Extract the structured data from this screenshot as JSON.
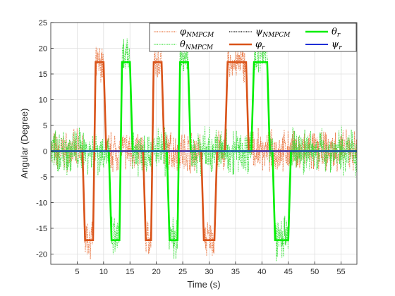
{
  "chart_data": {
    "type": "line",
    "xlabel": "Time (s)",
    "ylabel": "Angular (Degree)",
    "xlim": [
      0,
      58
    ],
    "ylim": [
      -22,
      25
    ],
    "xticks": [
      5,
      10,
      15,
      20,
      25,
      30,
      35,
      40,
      45,
      50,
      55
    ],
    "yticks": [
      -20,
      -15,
      -10,
      -5,
      0,
      5,
      10,
      15,
      20,
      25
    ],
    "grid": true,
    "legend_position": "top-right",
    "series": [
      {
        "name": "φNMPCM",
        "legend": {
          "base": "φ",
          "sub": "NMPCM"
        },
        "style": "dotted",
        "color": "#e8703a",
        "noise_amplitude": 3,
        "x": [
          0,
          6,
          6.5,
          8,
          8.5,
          10,
          10.5,
          17.5,
          18,
          19,
          19.5,
          21,
          21.5,
          28.5,
          29,
          31,
          31.5,
          33,
          33.5,
          37,
          37.5,
          58
        ],
        "y": [
          0,
          0,
          -17,
          -17,
          17,
          17,
          0,
          0,
          -17,
          -17,
          17,
          17,
          0,
          0,
          -17,
          -17,
          0,
          0,
          17,
          17,
          0,
          0
        ]
      },
      {
        "name": "θNMPCM",
        "legend": {
          "base": "θ",
          "sub": "NMPCM"
        },
        "style": "dotted",
        "color": "#33dd33",
        "noise_amplitude": 3.5,
        "x": [
          0,
          11,
          11.5,
          13,
          13.5,
          15,
          15.5,
          22,
          22.5,
          24,
          24.5,
          26,
          26.5,
          38,
          38.5,
          41,
          41.5,
          42,
          42.5,
          45,
          45.5,
          58
        ],
        "y": [
          0,
          0,
          -17,
          -17,
          18,
          18,
          0,
          0,
          -17,
          -17,
          18,
          18,
          0,
          0,
          19,
          19,
          0,
          0,
          -17,
          -17,
          0,
          0
        ]
      },
      {
        "name": "ψNMPCM",
        "legend": {
          "base": "ψ",
          "sub": "NMPCM"
        },
        "style": "dotted",
        "color": "#000000",
        "noise_amplitude": 0,
        "x": [
          0,
          58
        ],
        "y": [
          0,
          0
        ]
      },
      {
        "name": "φr",
        "legend": {
          "base": "φ",
          "sub": "r"
        },
        "style": "solid",
        "color": "#d95319",
        "width": 2.6,
        "noise_amplitude": 0,
        "x": [
          0,
          6,
          6.5,
          8,
          8.5,
          10,
          10.5,
          17.5,
          18,
          19,
          19.5,
          21,
          21.5,
          28.5,
          29,
          31,
          31.5,
          33,
          33.5,
          37,
          37.5,
          58
        ],
        "y": [
          0,
          0,
          -17.3,
          -17.3,
          17.3,
          17.3,
          0,
          0,
          -17.3,
          -17.3,
          17.3,
          17.3,
          0,
          0,
          -17.3,
          -17.3,
          0,
          0,
          17.3,
          17.3,
          0,
          0
        ]
      },
      {
        "name": "θr",
        "legend": {
          "base": "θ",
          "sub": "r"
        },
        "style": "solid",
        "color": "#00ee00",
        "width": 2.6,
        "noise_amplitude": 0,
        "x": [
          0,
          11,
          11.5,
          13,
          13.5,
          15,
          15.5,
          22,
          22.5,
          24,
          24.5,
          26,
          26.5,
          38,
          38.5,
          41,
          41.5,
          42,
          42.5,
          45,
          45.5,
          58
        ],
        "y": [
          0,
          0,
          -17.3,
          -17.3,
          17.3,
          17.3,
          0,
          0,
          -17.3,
          -17.3,
          17.3,
          17.3,
          0,
          0,
          17.3,
          17.3,
          0,
          0,
          -17.3,
          -17.3,
          0,
          0
        ]
      },
      {
        "name": "ψr",
        "legend": {
          "base": "ψ",
          "sub": "r"
        },
        "style": "solid",
        "color": "#1f2fd6",
        "width": 2,
        "noise_amplitude": 0,
        "x": [
          0,
          58
        ],
        "y": [
          0,
          0
        ]
      }
    ]
  }
}
